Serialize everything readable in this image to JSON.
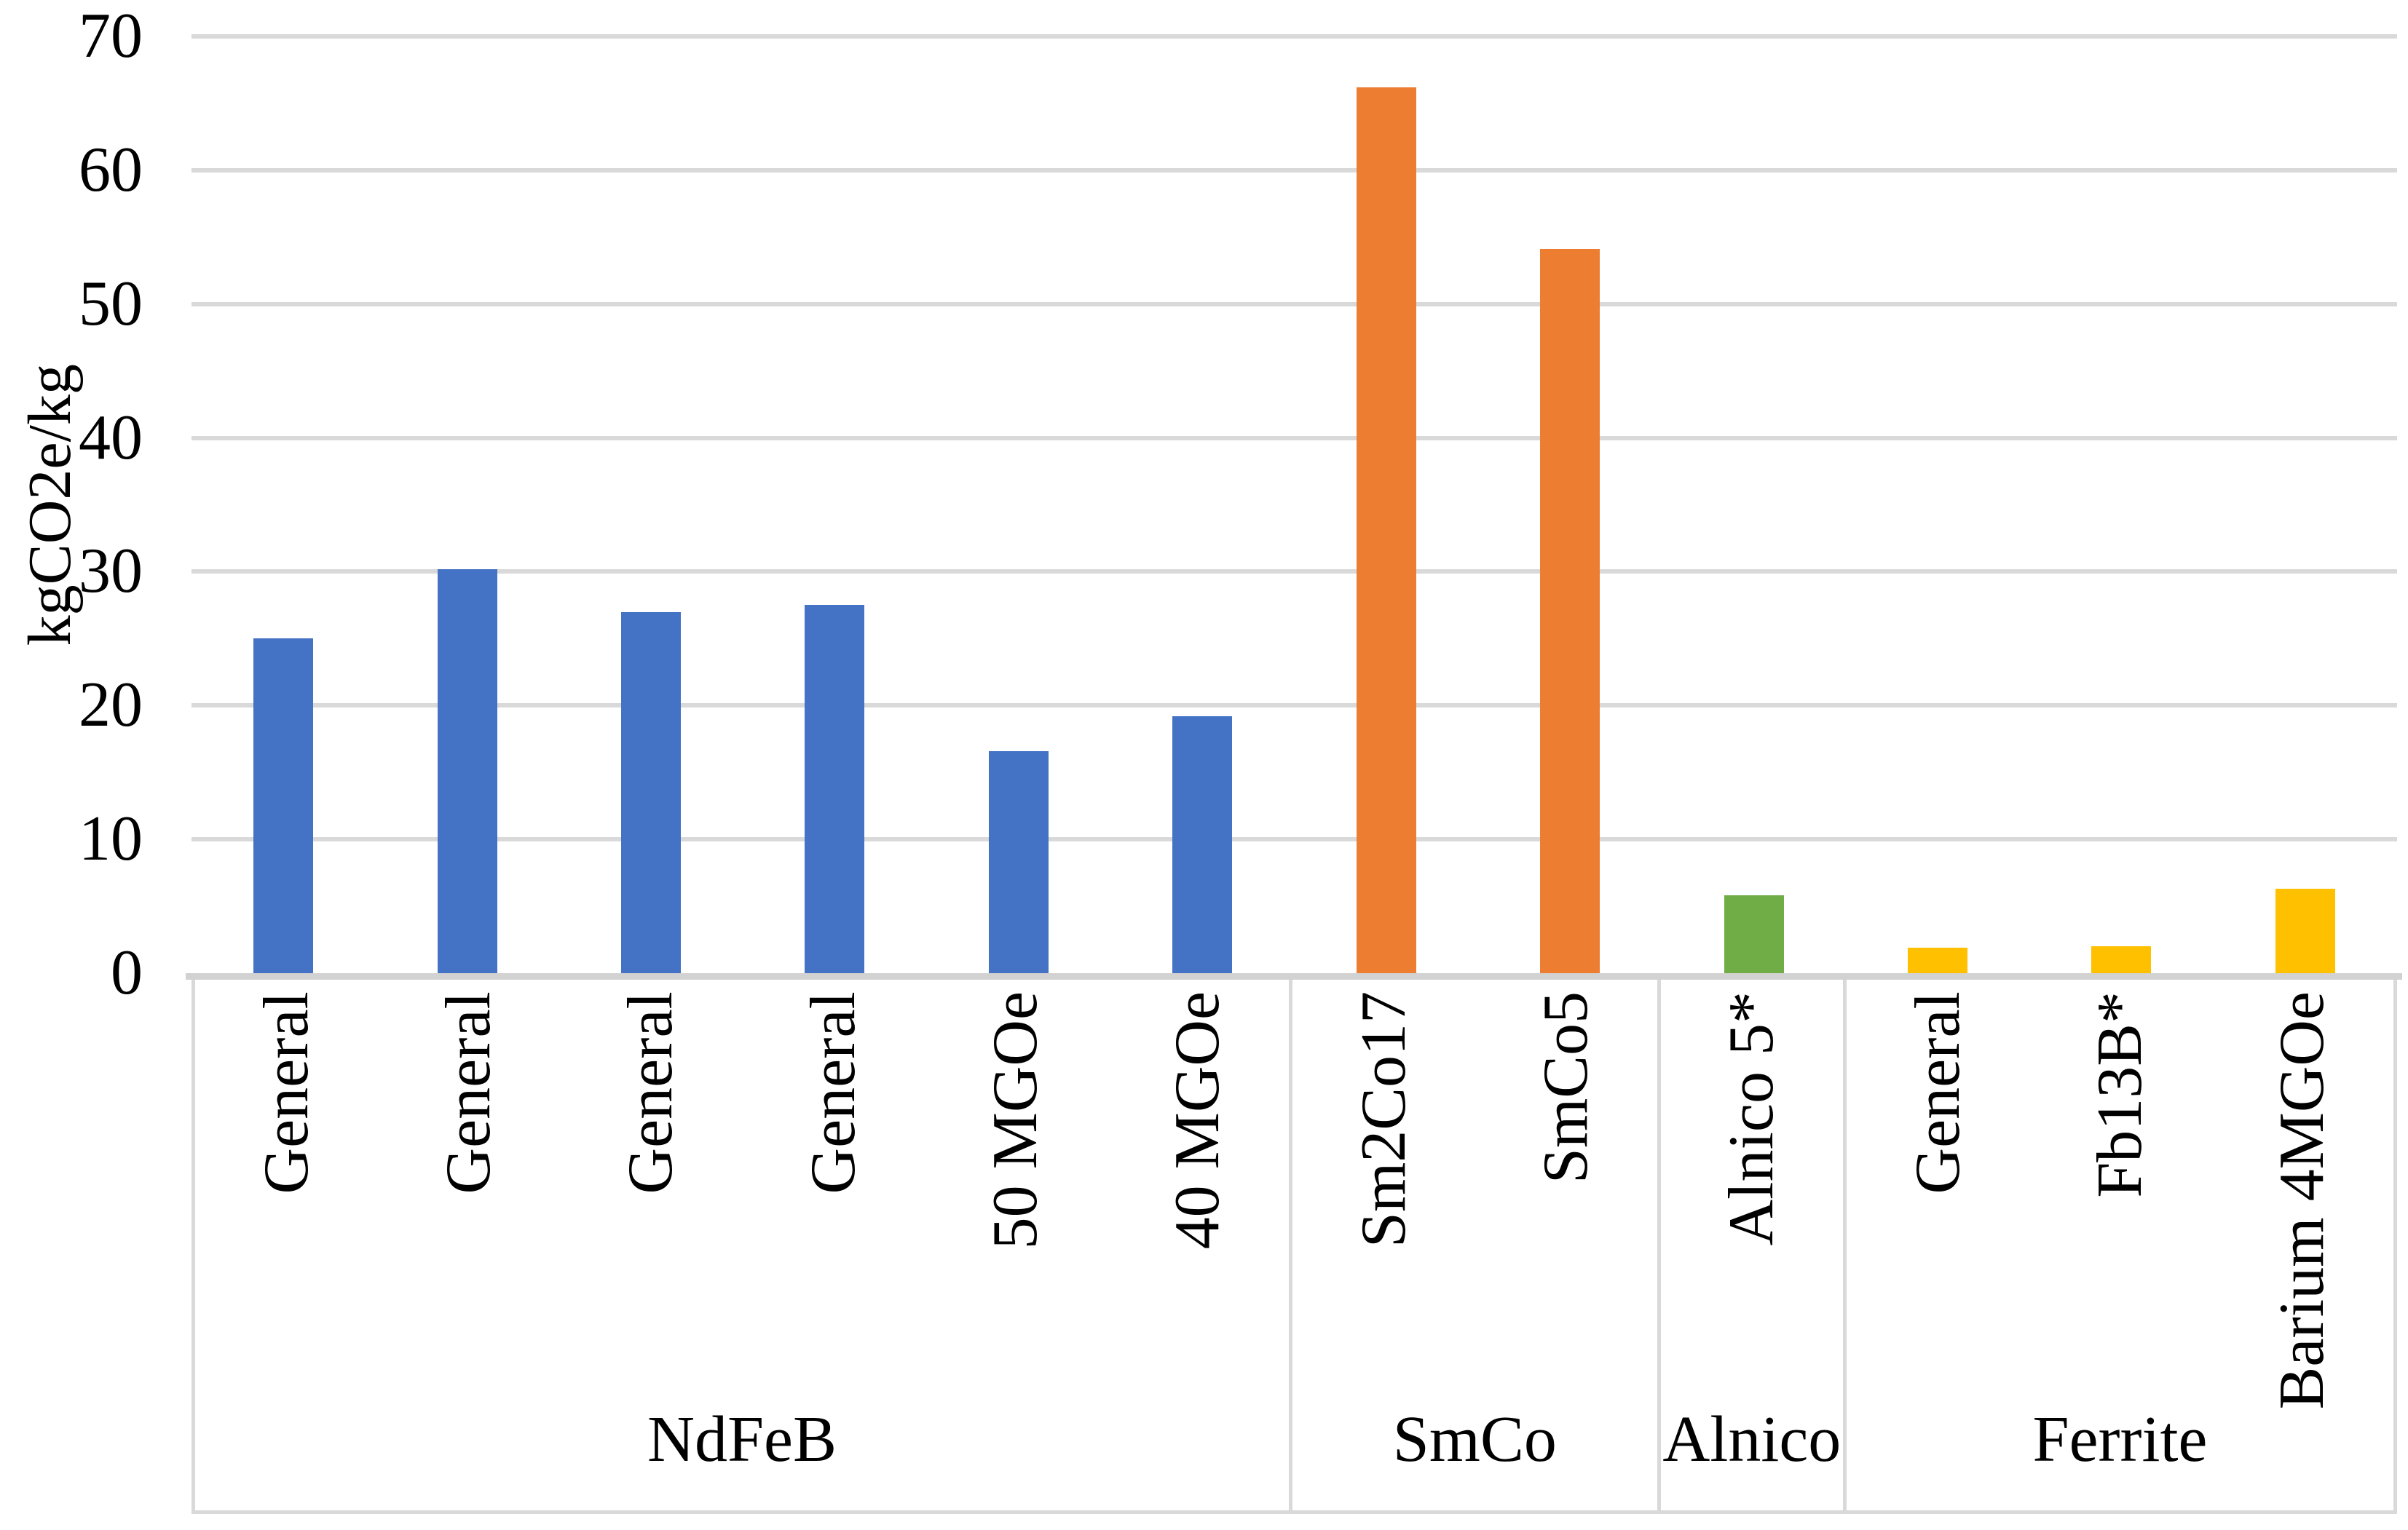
{
  "chart_data": {
    "type": "bar",
    "title": "",
    "ylabel": "kgCO2e/kg",
    "xlabel": "",
    "ylim": [
      0,
      70
    ],
    "yticks": [
      0,
      10,
      20,
      30,
      40,
      50,
      60,
      70
    ],
    "grid": "horizontal",
    "legend": "none",
    "categories": [
      "General",
      "General",
      "General",
      "General",
      "50 MGOe",
      "40 MGOe",
      "Sm2Co17",
      "SmCo5",
      "Alnico 5*",
      "General",
      "Fb13B*",
      "Barium 4MGOe"
    ],
    "values": [
      25.0,
      30.2,
      27.0,
      27.5,
      16.6,
      19.2,
      66.2,
      54.1,
      5.8,
      1.9,
      2.0,
      6.3
    ],
    "groups": [
      {
        "label": "NdFeB",
        "count": 6,
        "color": "#4472C4"
      },
      {
        "label": "SmCo",
        "count": 2,
        "color": "#ED7D31"
      },
      {
        "label": "Alnico",
        "count": 1,
        "color": "#70AD47"
      },
      {
        "label": "Ferrite",
        "count": 3,
        "color": "#FFC000"
      }
    ],
    "colors": {
      "gridline": "#D9D9D9",
      "axis_line": "#D2D2D2",
      "text": "#000000",
      "background": "#FFFFFF"
    }
  }
}
